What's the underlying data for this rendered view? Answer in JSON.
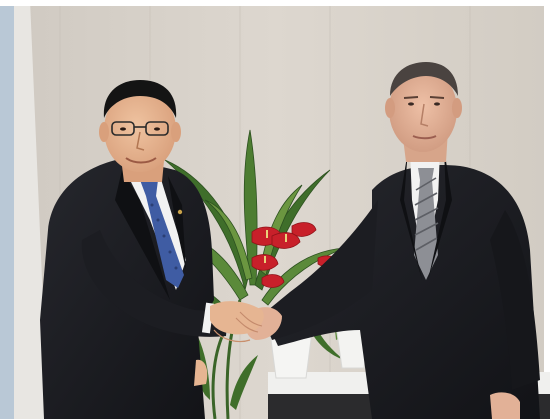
{
  "photo": {
    "subject": "handshake",
    "palette": {
      "wall": "#d9d3cb",
      "wall_shadow": "#c9c2b8",
      "window_sky": "#b9c8d6",
      "suit_dark": "#1c1d22",
      "suit_shadow": "#101114",
      "shirt": "#f2f2f2",
      "skin": "#e6b592",
      "skin_right": "#e2b197",
      "hair": "#141414",
      "hair_grey": "#4a4340",
      "tie_left": "#3f5ca3",
      "tie_right": "#8d8f95",
      "leaf": "#3f6e2a",
      "leaf_light": "#6b9640",
      "anthurium": "#c8202a",
      "pot": "#f5f5f3",
      "table": "#f0f0ee"
    }
  }
}
